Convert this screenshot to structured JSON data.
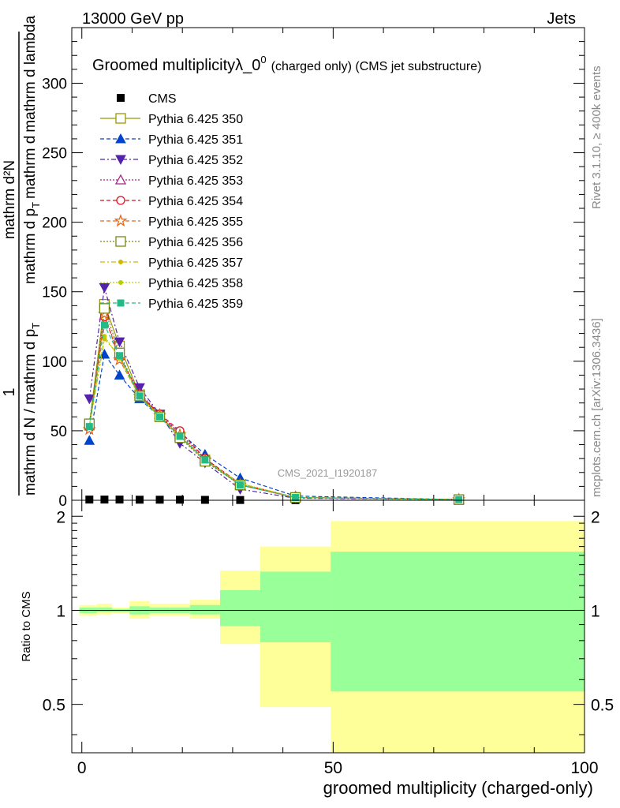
{
  "header": {
    "energy": "13000 GeV pp",
    "process": "Jets"
  },
  "side_labels": {
    "rivet": "Rivet 3.1.10, ≥ 400k events",
    "mcplots": "mcplots.cern.ch [arXiv:1306.3436]"
  },
  "chart_data": [
    {
      "type": "line",
      "panel": "main",
      "title_main": "Groomed multiplicityλ_0",
      "title_sup": "0",
      "title_tail": "(charged only) (CMS jet substructure)",
      "analysis_label": "CMS_2021_I1920187",
      "ylabel_top": "1",
      "ylabel_num": "mathrm d²N",
      "ylabel_den": "mathrm d N / mathrm d p",
      "ylabel_den2": "mathrm d p",
      "ylabel_den3": "mathrm d lambda",
      "ylabel_den_sub": "T",
      "ylabel_mid": "mathrm d",
      "xlabel": "",
      "xlim": [
        -2,
        100
      ],
      "ylim": [
        0,
        340
      ],
      "yticks": [
        0,
        50,
        100,
        150,
        200,
        250,
        300
      ],
      "legend_position": "top-left",
      "series": [
        {
          "name": "CMS",
          "marker": "square-filled",
          "line": "none",
          "color": "#000000",
          "x": [
            1.5,
            4.5,
            7.5,
            11.5,
            15.5,
            19.5,
            24.5,
            31.5,
            42.5,
            75.0
          ],
          "y": [
            0.5,
            0.5,
            0.5,
            0.4,
            0.4,
            0.4,
            0.3,
            0.2,
            0.1,
            0.05
          ]
        },
        {
          "name": "Pythia 6.425 350",
          "marker": "square-open",
          "line": "solid",
          "color": "#999900",
          "x": [
            1.5,
            4.5,
            7.5,
            11.5,
            15.5,
            19.5,
            24.5,
            31.5,
            42.5,
            75.0
          ],
          "y": [
            54,
            141,
            111,
            76,
            61,
            46,
            29,
            11,
            2,
            0.5
          ]
        },
        {
          "name": "Pythia 6.425 351",
          "marker": "triangle-up-filled",
          "line": "dashed",
          "color": "#0044cc",
          "x": [
            1.5,
            4.5,
            7.5,
            11.5,
            15.5,
            19.5,
            24.5,
            31.5,
            42.5,
            75.0
          ],
          "y": [
            43,
            105,
            90,
            73,
            60,
            49,
            33,
            16,
            3,
            0.5
          ]
        },
        {
          "name": "Pythia 6.425 352",
          "marker": "triangle-down-filled",
          "line": "dashdot",
          "color": "#5522aa",
          "x": [
            1.5,
            4.5,
            7.5,
            11.5,
            15.5,
            19.5,
            24.5,
            31.5,
            42.5,
            75.0
          ],
          "y": [
            73,
            153,
            114,
            81,
            62,
            41,
            27,
            8,
            1.5,
            0.5
          ]
        },
        {
          "name": "Pythia 6.425 353",
          "marker": "triangle-up-open",
          "line": "dotted",
          "color": "#aa2288",
          "x": [
            1.5,
            4.5,
            7.5,
            11.5,
            15.5,
            19.5,
            24.5,
            31.5,
            42.5,
            75.0
          ],
          "y": [
            55,
            133,
            104,
            77,
            62,
            48,
            30,
            11,
            2,
            0.5
          ]
        },
        {
          "name": "Pythia 6.425 354",
          "marker": "circle-open",
          "line": "dashed",
          "color": "#dd1122",
          "x": [
            1.5,
            4.5,
            7.5,
            11.5,
            15.5,
            19.5,
            24.5,
            31.5,
            42.5,
            75.0
          ],
          "y": [
            52,
            132,
            103,
            76,
            62,
            50,
            30,
            12,
            2,
            0.5
          ]
        },
        {
          "name": "Pythia 6.425 355",
          "marker": "star-open",
          "line": "dashed",
          "color": "#ee6611",
          "x": [
            1.5,
            4.5,
            7.5,
            11.5,
            15.5,
            19.5,
            24.5,
            31.5,
            42.5,
            75.0
          ],
          "y": [
            51,
            134,
            101,
            75,
            61,
            47,
            29,
            11,
            2,
            0.5
          ]
        },
        {
          "name": "Pythia 6.425 356",
          "marker": "square-open",
          "line": "dotted",
          "color": "#778811",
          "x": [
            1.5,
            4.5,
            7.5,
            11.5,
            15.5,
            19.5,
            24.5,
            31.5,
            42.5,
            75.0
          ],
          "y": [
            55,
            138,
            106,
            75,
            60,
            45,
            28,
            11,
            2,
            0.5
          ]
        },
        {
          "name": "Pythia 6.425 357",
          "marker": "dot",
          "line": "dashdot",
          "color": "#ccbb00",
          "x": [
            1.5,
            4.5,
            7.5,
            11.5,
            15.5,
            19.5,
            24.5,
            31.5,
            42.5,
            75.0
          ],
          "y": [
            53,
            116,
            104,
            74,
            60,
            46,
            29,
            12,
            2,
            0.5
          ]
        },
        {
          "name": "Pythia 6.425 358",
          "marker": "dot",
          "line": "dotted",
          "color": "#bbcc00",
          "x": [
            1.5,
            4.5,
            7.5,
            11.5,
            15.5,
            19.5,
            24.5,
            31.5,
            42.5,
            75.0
          ],
          "y": [
            54,
            118,
            102,
            74,
            60,
            46,
            29,
            12,
            2,
            0.5
          ]
        },
        {
          "name": "Pythia 6.425 359",
          "marker": "square-filled-small",
          "line": "dashed",
          "color": "#22bb88",
          "x": [
            1.5,
            4.5,
            7.5,
            11.5,
            15.5,
            19.5,
            24.5,
            31.5,
            42.5,
            75.0
          ],
          "y": [
            53,
            126,
            104,
            75,
            60,
            46,
            29,
            11,
            2,
            0.5
          ]
        }
      ]
    },
    {
      "type": "area",
      "panel": "ratio",
      "ylabel": "Ratio to CMS",
      "xlabel": "groomed multiplicity (charged-only)",
      "xlim": [
        -2,
        100
      ],
      "ylim": [
        0.35,
        2.25
      ],
      "xticks": [
        0,
        50,
        100
      ],
      "yticks": [
        0.5,
        1,
        2
      ],
      "reference_line": 1,
      "bins": [
        {
          "xlo": -0.5,
          "xhi": 3.0,
          "stat_lo": 0.98,
          "stat_hi": 1.02,
          "tot_lo": 0.96,
          "tot_hi": 1.04
        },
        {
          "xlo": 3.0,
          "xhi": 6.0,
          "stat_lo": 0.99,
          "stat_hi": 1.02,
          "tot_lo": 0.97,
          "tot_hi": 1.05
        },
        {
          "xlo": 6.0,
          "xhi": 9.5,
          "stat_lo": 0.99,
          "stat_hi": 1.01,
          "tot_lo": 0.98,
          "tot_hi": 1.02
        },
        {
          "xlo": 9.5,
          "xhi": 13.5,
          "stat_lo": 0.97,
          "stat_hi": 1.03,
          "tot_lo": 0.94,
          "tot_hi": 1.07
        },
        {
          "xlo": 13.5,
          "xhi": 17.5,
          "stat_lo": 0.98,
          "stat_hi": 1.02,
          "tot_lo": 0.96,
          "tot_hi": 1.05
        },
        {
          "xlo": 17.5,
          "xhi": 21.5,
          "stat_lo": 0.98,
          "stat_hi": 1.02,
          "tot_lo": 0.96,
          "tot_hi": 1.05
        },
        {
          "xlo": 21.5,
          "xhi": 27.5,
          "stat_lo": 0.97,
          "stat_hi": 1.04,
          "tot_lo": 0.94,
          "tot_hi": 1.08
        },
        {
          "xlo": 27.5,
          "xhi": 35.5,
          "stat_lo": 0.89,
          "stat_hi": 1.16,
          "tot_lo": 0.78,
          "tot_hi": 1.34
        },
        {
          "xlo": 35.5,
          "xhi": 49.5,
          "stat_lo": 0.79,
          "stat_hi": 1.33,
          "tot_lo": 0.49,
          "tot_hi": 1.6
        },
        {
          "xlo": 49.5,
          "xhi": 100.0,
          "stat_lo": 0.55,
          "stat_hi": 1.54,
          "tot_lo": 0.35,
          "tot_hi": 1.93
        }
      ],
      "stat_color": "#99ff99",
      "tot_color": "#ffff99"
    }
  ]
}
